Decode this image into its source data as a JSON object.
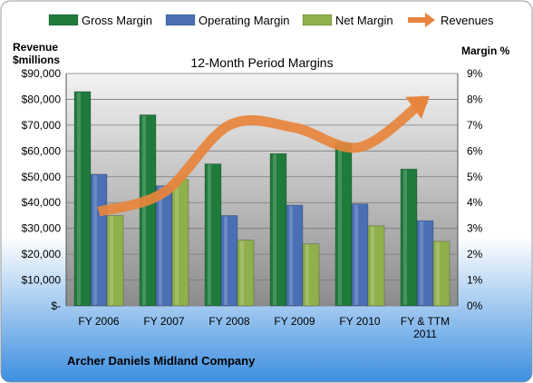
{
  "chart_data": {
    "type": "bar",
    "title": "12-Month Period Margins",
    "footer": "Archer Daniels Midland Company",
    "categories": [
      [
        "FY 2006"
      ],
      [
        "FY 2007"
      ],
      [
        "FY 2008"
      ],
      [
        "FY 2009"
      ],
      [
        "FY 2010"
      ],
      [
        "FY & TTM",
        "2011"
      ]
    ],
    "y_left": {
      "label_lines": [
        "Revenue",
        "$millions"
      ],
      "ylim": [
        0,
        90000
      ],
      "ticks": [
        "$-",
        "$10,000",
        "$20,000",
        "$30,000",
        "$40,000",
        "$50,000",
        "$60,000",
        "$70,000",
        "$80,000",
        "$90,000"
      ]
    },
    "y_right": {
      "label": "Margin %",
      "ylim": [
        0,
        9
      ],
      "ticks": [
        "0%",
        "1%",
        "2%",
        "3%",
        "4%",
        "5%",
        "6%",
        "7%",
        "8%",
        "9%"
      ]
    },
    "series": [
      {
        "name": "Gross Margin",
        "axis": "right",
        "values": [
          8.3,
          7.4,
          5.5,
          5.9,
          6.3,
          5.3
        ],
        "color": "#1e7b3c"
      },
      {
        "name": "Operating Margin",
        "axis": "right",
        "values": [
          5.1,
          4.65,
          3.5,
          3.9,
          3.95,
          3.3
        ],
        "color": "#4a6fb5"
      },
      {
        "name": "Net Margin",
        "axis": "right",
        "values": [
          3.5,
          4.9,
          2.55,
          2.4,
          3.1,
          2.5
        ],
        "color": "#8fb04a"
      },
      {
        "name": "Revenues",
        "axis": "left",
        "type": "line",
        "values": [
          36500,
          44000,
          70000,
          69000,
          61500,
          80000
        ],
        "color": "#e8843c"
      }
    ],
    "legend_position": "top",
    "grid": true
  }
}
